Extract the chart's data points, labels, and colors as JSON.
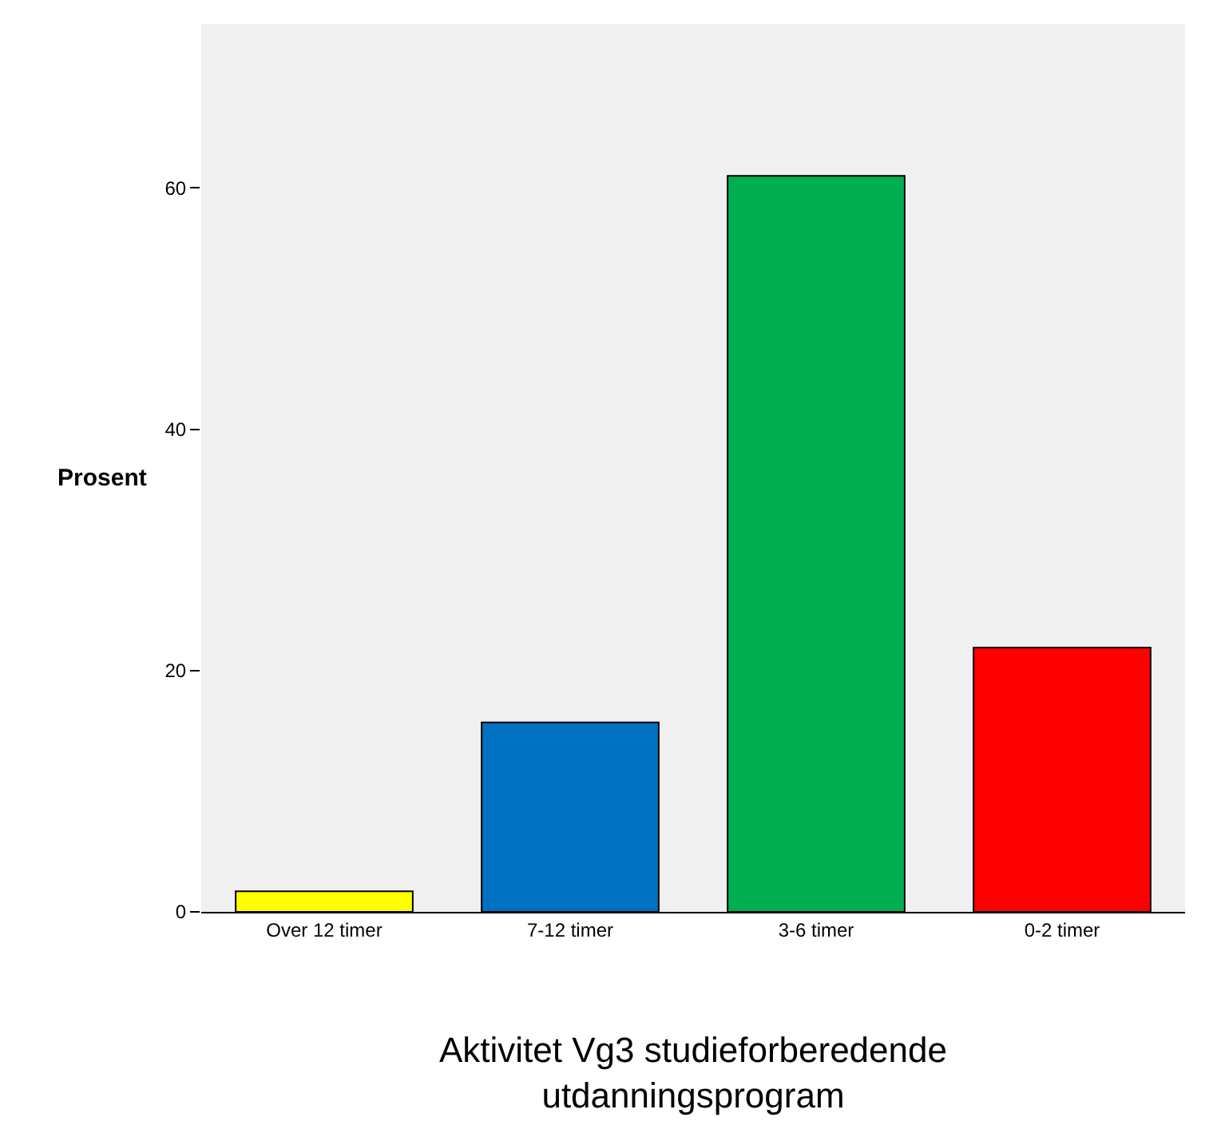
{
  "chart_data": {
    "type": "bar",
    "xlabel": "Aktivitet Vg3 studieforberedende utdanningsprogram",
    "ylabel": "Prosent",
    "categories": [
      "Over 12 timer",
      "7-12 timer",
      "3-6 timer",
      "0-2 timer"
    ],
    "values": [
      1.7,
      15.7,
      61.0,
      21.9
    ],
    "colors": [
      "#ffff00",
      "#0070c0",
      "#00b050",
      "#ff0000"
    ],
    "ylim": [
      0,
      73.6
    ],
    "yticks": [
      0,
      20,
      40,
      60
    ],
    "grid": false,
    "legend": false
  }
}
